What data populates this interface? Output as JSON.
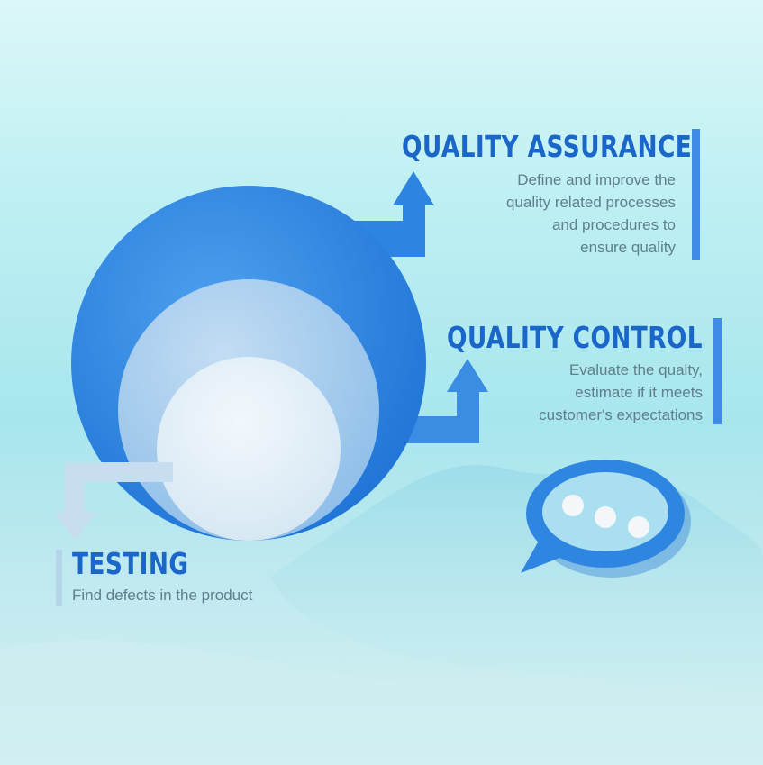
{
  "sections": {
    "quality_assurance": {
      "title": "QUALITY ASSURANCE",
      "lines": [
        "Define and improve the",
        "quality related processes",
        "and procedures to",
        "ensure quality"
      ]
    },
    "quality_control": {
      "title": "QUALITY CONTROL",
      "lines": [
        "Evaluate the qualty,",
        "estimate if it meets",
        "customer's expectations"
      ]
    },
    "testing": {
      "title": "TESTING",
      "lines": [
        "Find defects in the product"
      ]
    }
  },
  "colors": {
    "accent": "#1a66c9",
    "outer_circle": "#2f86e1",
    "middle_circle": "#9cc7ec",
    "inner_circle": "#e4f0f7",
    "body_text": "#5f7f8c"
  },
  "icons": [
    "arrow-up-icon",
    "arrow-down-icon",
    "speech-bubble-icon"
  ]
}
